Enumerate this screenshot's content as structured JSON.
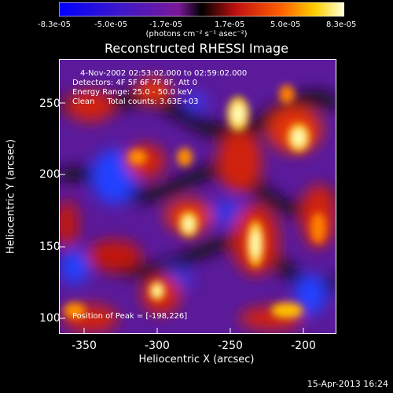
{
  "colorbar": {
    "ticks": [
      "-8.3e-05",
      "-5.0e-05",
      "-1.7e-05",
      "1.7e-05",
      "5.0e-05",
      "8.3e-05"
    ],
    "units": "(photons cm⁻² s⁻¹ asec⁻²)"
  },
  "title": "Reconstructed RHESSI Image",
  "info": {
    "time_range": "4-Nov-2002 02:53:02.000 to 02:59:02.000",
    "detectors": "Detectors: 4F 5F 6F 7F 8F, Att 0",
    "energy": "Energy Range: 25.0 - 50.0 keV",
    "clean": "Clean     Total counts: 3.63E+03"
  },
  "peak": "Position of Peak = [-198,226]",
  "axes": {
    "xlabel": "Heliocentric X (arcsec)",
    "ylabel": "Heliocentric Y (arcsec)",
    "xticks": [
      "-350",
      "-300",
      "-250",
      "-200"
    ],
    "yticks": [
      "250",
      "200",
      "150",
      "100"
    ]
  },
  "footer_date": "15-Apr-2013 16:24",
  "chart_data": {
    "type": "heatmap",
    "title": "Reconstructed RHESSI Image",
    "xlabel": "Heliocentric X (arcsec)",
    "ylabel": "Heliocentric Y (arcsec)",
    "xlim": [
      -368,
      -178
    ],
    "ylim": [
      93,
      282
    ],
    "color_range": [
      -8.3e-05,
      8.3e-05
    ],
    "peak_position": [
      -198,
      226
    ]
  }
}
